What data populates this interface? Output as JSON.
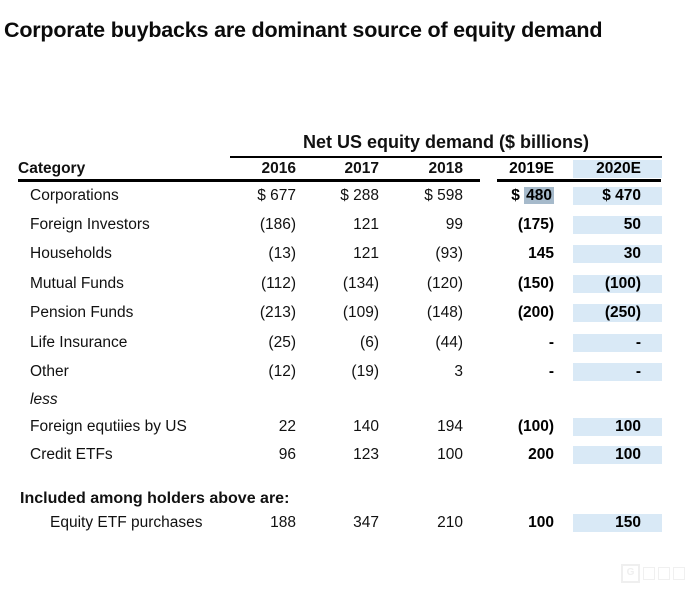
{
  "title": "Corporate buybacks are dominant source of equity demand",
  "table": {
    "header": "Net US equity demand ($ billions)",
    "category_label": "Category",
    "years": [
      "2016",
      "2017",
      "2018",
      "2019E",
      "2020E"
    ],
    "rows": [
      {
        "category": "Corporations",
        "c2016": "$ 677",
        "c2017": "$ 288",
        "c2018": "$ 598",
        "c2019_prefix": "$",
        "c2019_value": "480",
        "c2020": "$ 470"
      },
      {
        "category": "Foreign Investors",
        "c2016": "(186)",
        "c2017": "121",
        "c2018": "99",
        "c2019": "(175)",
        "c2020": "50"
      },
      {
        "category": "Households",
        "c2016": "(13)",
        "c2017": "121",
        "c2018": "(93)",
        "c2019": "145",
        "c2020": "30"
      },
      {
        "category": "Mutual Funds",
        "c2016": "(112)",
        "c2017": "(134)",
        "c2018": "(120)",
        "c2019": "(150)",
        "c2020": "(100)"
      },
      {
        "category": "Pension Funds",
        "c2016": "(213)",
        "c2017": "(109)",
        "c2018": "(148)",
        "c2019": "(200)",
        "c2020": "(250)"
      },
      {
        "category": "Life Insurance",
        "c2016": "(25)",
        "c2017": "(6)",
        "c2018": "(44)",
        "c2019": "-",
        "c2020": "-"
      },
      {
        "category": "Other",
        "c2016": "(12)",
        "c2017": "(19)",
        "c2018": "3",
        "c2019": "-",
        "c2020": "-"
      }
    ],
    "less_label": "less",
    "less_rows": [
      {
        "category": "Foreign equtiies by US",
        "c2016": "22",
        "c2017": "140",
        "c2018": "194",
        "c2019": "(100)",
        "c2020": "100"
      },
      {
        "category": "Credit ETFs",
        "c2016": "96",
        "c2017": "123",
        "c2018": "100",
        "c2019": "200",
        "c2020": "100"
      }
    ],
    "included_label": "Included among holders above are:",
    "included_row": {
      "category": "Equity ETF purchases",
      "c2016": "188",
      "c2017": "347",
      "c2018": "210",
      "c2019": "100",
      "c2020": "150"
    }
  },
  "watermark": {
    "brand": "G格隆汇"
  },
  "colors": {
    "column_highlight": "#d9e9f6",
    "cell_selection": "#a6bacb",
    "rule": "#000000"
  }
}
